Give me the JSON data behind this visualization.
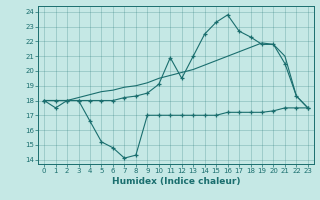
{
  "xlabel": "Humidex (Indice chaleur)",
  "bg_color": "#c5e8e5",
  "line_color": "#1a6e6e",
  "xlim_min": -0.5,
  "xlim_max": 23.5,
  "ylim_min": 13.7,
  "ylim_max": 24.4,
  "xticks": [
    0,
    1,
    2,
    3,
    4,
    5,
    6,
    7,
    8,
    9,
    10,
    11,
    12,
    13,
    14,
    15,
    16,
    17,
    18,
    19,
    20,
    21,
    22,
    23
  ],
  "yticks": [
    14,
    15,
    16,
    17,
    18,
    19,
    20,
    21,
    22,
    23,
    24
  ],
  "line_dip_x": [
    0,
    1,
    2,
    3,
    4,
    5,
    6,
    7,
    8,
    9,
    10,
    11,
    12,
    13,
    14,
    15,
    16,
    17,
    18,
    19,
    20,
    21,
    22,
    23
  ],
  "line_dip_y": [
    18,
    17.5,
    18,
    18,
    16.6,
    15.2,
    14.8,
    14.1,
    14.3,
    17.0,
    17.0,
    17.0,
    17.0,
    17.0,
    17.0,
    17.0,
    17.2,
    17.2,
    17.2,
    17.2,
    17.3,
    17.5,
    17.5,
    17.5
  ],
  "line_peak_x": [
    0,
    1,
    2,
    3,
    4,
    5,
    6,
    7,
    8,
    9,
    10,
    11,
    12,
    13,
    14,
    15,
    16,
    17,
    18,
    19,
    20,
    21,
    22,
    23
  ],
  "line_peak_y": [
    18,
    18,
    18,
    18,
    18,
    18,
    18,
    18.2,
    18.3,
    18.5,
    19.1,
    20.9,
    19.5,
    21.0,
    22.5,
    23.3,
    23.8,
    22.7,
    22.3,
    21.8,
    21.8,
    20.5,
    18.3,
    17.5
  ],
  "line_avg_x": [
    0,
    1,
    2,
    3,
    4,
    5,
    6,
    7,
    8,
    9,
    10,
    11,
    12,
    13,
    14,
    15,
    16,
    17,
    18,
    19,
    20,
    21,
    22,
    23
  ],
  "line_avg_y": [
    18,
    18,
    18,
    18.2,
    18.4,
    18.6,
    18.7,
    18.9,
    19.0,
    19.2,
    19.5,
    19.7,
    19.9,
    20.1,
    20.4,
    20.7,
    21.0,
    21.3,
    21.6,
    21.9,
    21.8,
    21.0,
    18.3,
    17.5
  ]
}
